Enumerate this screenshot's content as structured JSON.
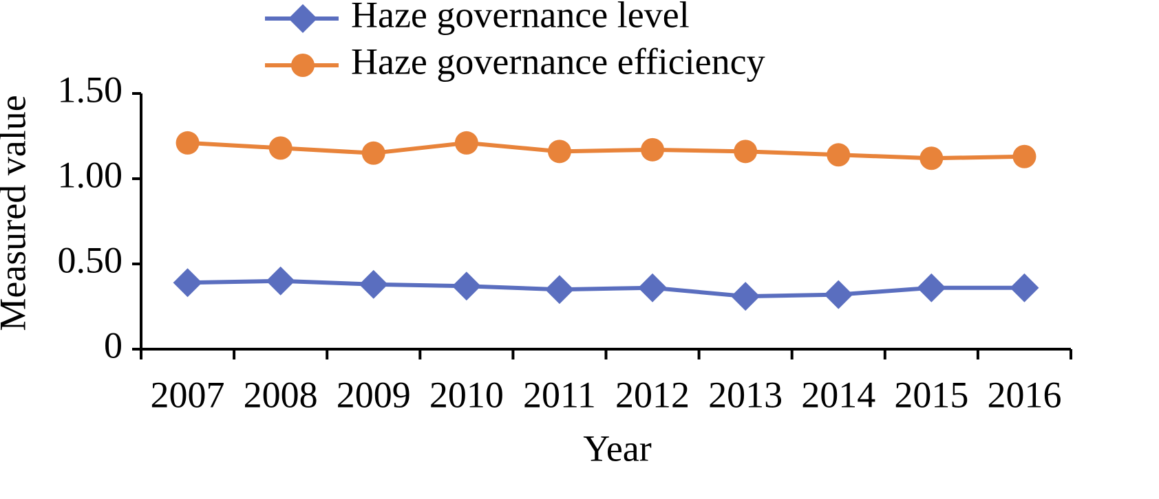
{
  "chart_data": {
    "type": "line",
    "x_label": "Year",
    "y_label": "Measured value",
    "categories": [
      "2007",
      "2008",
      "2009",
      "2010",
      "2011",
      "2012",
      "2013",
      "2014",
      "2015",
      "2016"
    ],
    "series": [
      {
        "name": "Haze governance level",
        "color": "#5a6ebf",
        "marker": "diamond",
        "values": [
          0.39,
          0.4,
          0.38,
          0.37,
          0.35,
          0.36,
          0.31,
          0.32,
          0.36,
          0.36
        ]
      },
      {
        "name": "Haze governance efficiency",
        "color": "#e8833a",
        "marker": "circle",
        "values": [
          1.21,
          1.18,
          1.15,
          1.21,
          1.16,
          1.17,
          1.16,
          1.14,
          1.12,
          1.13
        ]
      }
    ],
    "ylim": [
      0,
      1.5
    ],
    "yticks": [
      0,
      {
        "value": 0.5,
        "label": "0.50"
      },
      {
        "value": 1,
        "label": "1.00"
      },
      {
        "value": 1.5,
        "label": "1.50"
      }
    ],
    "grid": false
  }
}
